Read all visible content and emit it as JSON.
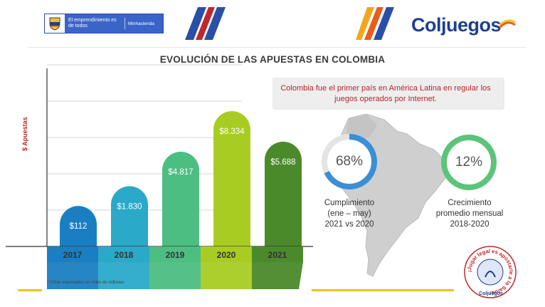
{
  "header": {
    "gov_text": "El emprendimiento es de todos",
    "gov_ministry": "Minhacienda",
    "brand_name": "Coljuegos"
  },
  "title": "EVOLUCIÓN DE LAS APUESTAS EN COLOMBIA",
  "chart_data": {
    "type": "bar",
    "ylabel": "$ Apuestas",
    "categories": [
      "2017",
      "2018",
      "2019",
      "2020",
      "2021"
    ],
    "values": [
      112,
      1830,
      4817,
      8334,
      5688
    ],
    "value_labels": [
      "$112",
      "$1.830",
      "$4.817",
      "$8.334",
      "$5.688"
    ],
    "footnote": "Cifras expresadas en miles de millones",
    "colors": [
      "#1a7fc2",
      "#2aa9c9",
      "#4cbe82",
      "#a9cc22",
      "#4a8a2a"
    ],
    "grid": true
  },
  "callout": "Colombia fue el primer país en América Latina en regular los juegos operados por Internet.",
  "kpis": [
    {
      "value": "68%",
      "fraction": 0.68,
      "color": "#3a8fd6",
      "caption": [
        "Cumplimiento",
        "(ene – may)",
        "2021 vs 2020"
      ]
    },
    {
      "value": "12%",
      "fraction": 0.12,
      "color": "#5cc47a",
      "caption": [
        "Crecimiento",
        "promedio mensual",
        "2018-2020"
      ]
    }
  ],
  "seal": {
    "ring_text": "¡Jugar legal es apostarle a la Salud!",
    "label": "Coljuegos"
  }
}
